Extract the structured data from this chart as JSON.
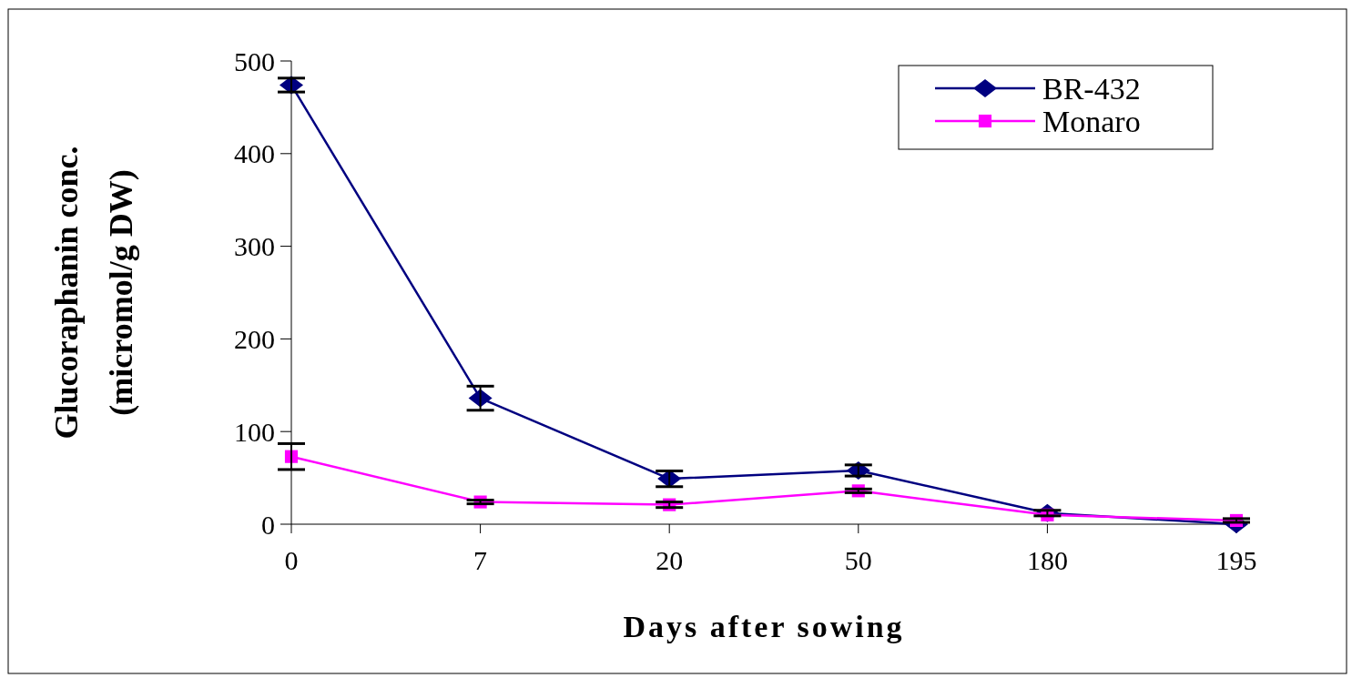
{
  "chart_data": {
    "type": "line",
    "xlabel": "Days after sowing",
    "ylabel": "Glucoraphanin conc.\n(micromol/g DW)",
    "categories": [
      "0",
      "7",
      "20",
      "50",
      "180",
      "195"
    ],
    "series": [
      {
        "name": "BR-432",
        "color": "#000080",
        "marker": "diamond",
        "values": [
          474,
          136,
          49,
          58,
          12,
          0
        ],
        "errors": [
          7.5,
          13,
          8.5,
          6,
          3,
          null
        ]
      },
      {
        "name": "Monaro",
        "color": "#ff00ff",
        "marker": "square",
        "values": [
          73,
          24,
          21,
          36,
          10,
          4
        ],
        "errors": [
          14,
          2,
          3,
          2,
          null,
          2
        ]
      }
    ],
    "ylim": [
      0,
      500
    ],
    "yticks": [
      0,
      100,
      200,
      300,
      400,
      500
    ],
    "grid": false,
    "legend": "top right"
  }
}
